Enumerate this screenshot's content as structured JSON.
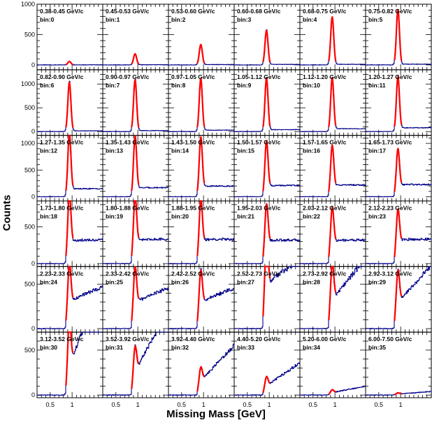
{
  "chart_data": {
    "type": "line",
    "ylabel": "Counts",
    "xlabel": "Missing Mass [GeV]",
    "xlim": [
      0.2,
      1.7
    ],
    "x_ticks": [
      "0.5",
      "1"
    ],
    "fit_color": "#ff0000",
    "data_color": "#00008b",
    "rows": [
      {
        "ylim": [
          -80,
          1000
        ],
        "y_ticks": [
          "1000",
          "500",
          "0"
        ]
      },
      {
        "ylim": [
          -80,
          1300
        ],
        "y_ticks": [
          "1000",
          "500",
          "0"
        ]
      },
      {
        "ylim": [
          -80,
          1150
        ],
        "y_ticks": [
          "1000",
          "500",
          "0"
        ]
      },
      {
        "ylim": [
          -40,
          850
        ],
        "y_ticks": [
          "500",
          "0"
        ]
      },
      {
        "ylim": [
          -40,
          700
        ],
        "y_ticks": [
          "500",
          "0"
        ]
      },
      {
        "ylim": [
          -30,
          700
        ],
        "y_ticks": [
          "500",
          "0"
        ]
      }
    ],
    "panels": [
      {
        "range": "0.38-0.45 GeV/c",
        "bin": "bin:0",
        "peak": 55,
        "bg": 2,
        "slope": 0
      },
      {
        "range": "0.45-0.53 GeV/c",
        "bin": "bin:1",
        "peak": 180,
        "bg": 3,
        "slope": 0
      },
      {
        "range": "0.53-0.60 GeV/c",
        "bin": "bin:2",
        "peak": 330,
        "bg": 5,
        "slope": 0
      },
      {
        "range": "0.60-0.68 GeV/c",
        "bin": "bin:3",
        "peak": 560,
        "bg": 8,
        "slope": 0
      },
      {
        "range": "0.68-0.75 GeV/c",
        "bin": "bin:4",
        "peak": 780,
        "bg": 10,
        "slope": 0
      },
      {
        "range": "0.75-0.82 GeV/c",
        "bin": "bin:5",
        "peak": 900,
        "bg": 12,
        "slope": 0
      },
      {
        "range": "0.82-0.90 GeV/c",
        "bin": "bin:6",
        "peak": 1020,
        "bg": 15,
        "slope": 0
      },
      {
        "range": "0.90-0.97 GeV/c",
        "bin": "bin:7",
        "peak": 1070,
        "bg": 20,
        "slope": 0
      },
      {
        "range": "0.97-1.05 GeV/c",
        "bin": "bin:8",
        "peak": 1090,
        "bg": 30,
        "slope": 0
      },
      {
        "range": "1.05-1.12 GeV/c",
        "bin": "bin:9",
        "peak": 1090,
        "bg": 40,
        "slope": 0
      },
      {
        "range": "1.12-1.20 GeV/c",
        "bin": "bin:10",
        "peak": 1080,
        "bg": 60,
        "slope": 0
      },
      {
        "range": "1.20-1.27 GeV/c",
        "bin": "bin:11",
        "peak": 1090,
        "bg": 80,
        "slope": 0
      },
      {
        "range": "1.27-1.35 GeV/c",
        "bin": "bin:12",
        "peak": 1060,
        "bg": 150,
        "slope": 0
      },
      {
        "range": "1.35-1.43 GeV/c",
        "bin": "bin:13",
        "peak": 1010,
        "bg": 170,
        "slope": 0
      },
      {
        "range": "1.43-1.50 GeV/c",
        "bin": "bin:14",
        "peak": 960,
        "bg": 200,
        "slope": 0
      },
      {
        "range": "1.50-1.57 GeV/c",
        "bin": "bin:15",
        "peak": 880,
        "bg": 210,
        "slope": 0
      },
      {
        "range": "1.57-1.65 GeV/c",
        "bin": "bin:16",
        "peak": 790,
        "bg": 220,
        "slope": 0
      },
      {
        "range": "1.65-1.73 GeV/c",
        "bin": "bin:17",
        "peak": 720,
        "bg": 230,
        "slope": 0
      },
      {
        "range": "1.73-1.80 GeV/c",
        "bin": "bin:18",
        "peak": 700,
        "bg": 320,
        "slope": 0
      },
      {
        "range": "1.80-1.88 GeV/c",
        "bin": "bin:19",
        "peak": 660,
        "bg": 330,
        "slope": 0
      },
      {
        "range": "1.88-1.95 GeV/c",
        "bin": "bin:20",
        "peak": 620,
        "bg": 330,
        "slope": 0
      },
      {
        "range": "1.95-2.03 GeV/c",
        "bin": "bin:21",
        "peak": 560,
        "bg": 320,
        "slope": 0
      },
      {
        "range": "2.03-2.12 GeV/c",
        "bin": "bin:22",
        "peak": 520,
        "bg": 320,
        "slope": 0
      },
      {
        "range": "2.12-2.23 GeV/c",
        "bin": "bin:23",
        "peak": 480,
        "bg": 330,
        "slope": 0
      },
      {
        "range": "2.23-2.33 GeV/c",
        "bin": "bin:24",
        "peak": 470,
        "bg": 340,
        "slope": 1
      },
      {
        "range": "2.33-2.42 GeV/c",
        "bin": "bin:25",
        "peak": 440,
        "bg": 330,
        "slope": 1
      },
      {
        "range": "2.42-2.52 GeV/c",
        "bin": "bin:26",
        "peak": 400,
        "bg": 330,
        "slope": 1
      },
      {
        "range": "2.52-2.73 GeV/c",
        "bin": "bin:27",
        "peak": 620,
        "bg": 560,
        "slope": 1
      },
      {
        "range": "2.73-2.92 GeV/c",
        "bin": "bin:28",
        "peak": 430,
        "bg": 400,
        "slope": 2
      },
      {
        "range": "2.92-3.12 GeV/c",
        "bin": "bin:29",
        "peak": 380,
        "bg": 360,
        "slope": 2
      },
      {
        "range": "3.12-3.52 GeV/c",
        "bin": "bin:30",
        "peak": 560,
        "bg": 380,
        "slope": 3
      },
      {
        "range": "3.52-3.92 GeV/c",
        "bin": "bin:31",
        "peak": 320,
        "bg": 290,
        "slope": 3
      },
      {
        "range": "3.92-4.40 GeV/c",
        "bin": "bin:32",
        "peak": 180,
        "bg": 170,
        "slope": 3
      },
      {
        "range": "4.40-5.20 GeV/c",
        "bin": "bin:33",
        "peak": 120,
        "bg": 110,
        "slope": 3
      },
      {
        "range": "5.20-6.00 GeV/c",
        "bin": "bin:34",
        "peak": 35,
        "bg": 30,
        "slope": 3
      },
      {
        "range": "6.00-7.50 GeV/c",
        "bin": "bin:35",
        "peak": 15,
        "bg": 12,
        "slope": 3
      }
    ]
  }
}
